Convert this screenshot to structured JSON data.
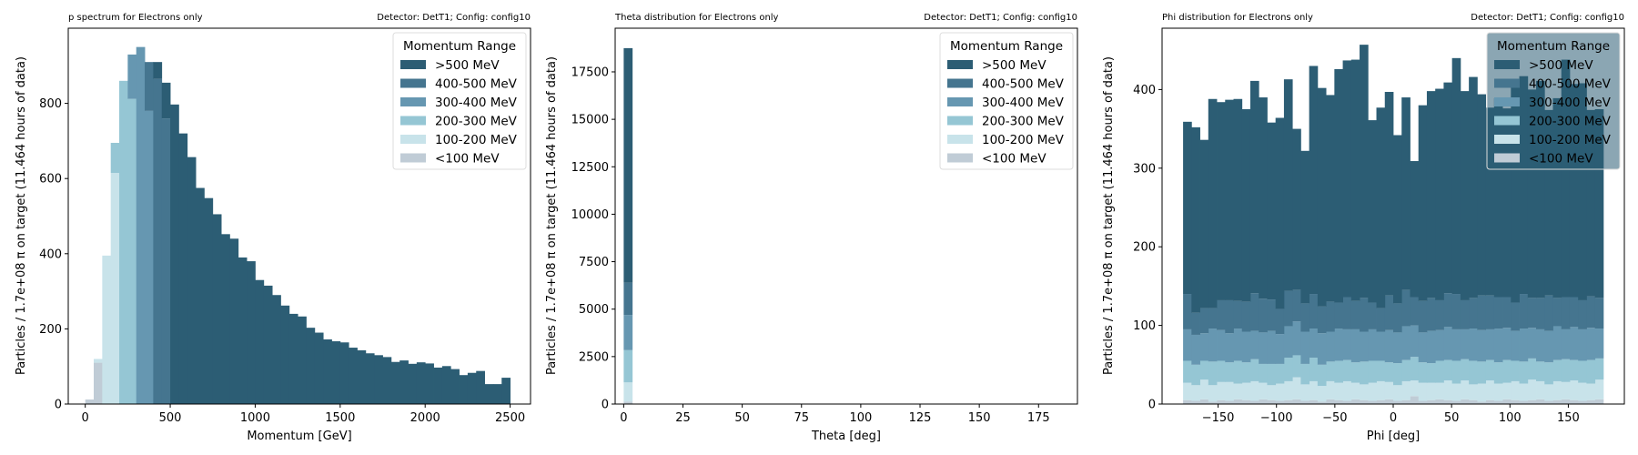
{
  "colors": {
    ">500 MeV": "#2c5d74",
    "400-500 MeV": "#45758f",
    "300-400 MeV": "#6697b1",
    "200-300 MeV": "#95c6d4",
    "100-200 MeV": "#c8e3ea",
    "<100 MeV": "#c0ccd6"
  },
  "chart_data": [
    {
      "type": "bar",
      "title_left": "p spectrum for Electrons only",
      "title_right": "Detector: DetT1; Config: config10",
      "xlabel": "Momentum [GeV]",
      "ylabel": "Particles / 1.7e+08 π on target (11.464 hours of data)",
      "xlim": [
        -100,
        2620
      ],
      "ylim": [
        0,
        1000
      ],
      "xticks": [
        0,
        500,
        1000,
        1500,
        2000,
        2500
      ],
      "yticks": [
        0,
        200,
        400,
        600,
        800
      ],
      "legend_title": "Momentum Range",
      "legend_position": "top-right",
      "bin_edges": [
        0,
        50,
        100,
        150,
        200,
        250,
        300,
        350,
        400,
        450,
        500,
        550,
        600,
        650,
        700,
        750,
        800,
        850,
        900,
        950,
        1000,
        1050,
        1100,
        1150,
        1200,
        1250,
        1300,
        1350,
        1400,
        1450,
        1500,
        1550,
        1600,
        1650,
        1700,
        1750,
        1800,
        1850,
        1900,
        1950,
        2000,
        2050,
        2100,
        2150,
        2200,
        2250,
        2300,
        2350,
        2400,
        2450,
        2500
      ],
      "series": [
        {
          "name": "<100 MeV",
          "values": [
            12,
            110,
            0,
            0,
            0,
            0,
            0,
            0,
            0,
            0,
            0,
            0,
            0,
            0,
            0,
            0,
            0,
            0,
            0,
            0,
            0,
            0,
            0,
            0,
            0,
            0,
            0,
            0,
            0,
            0,
            0,
            0,
            0,
            0,
            0,
            0,
            0,
            0,
            0,
            0,
            0,
            0,
            0,
            0,
            0,
            0,
            0,
            0,
            0,
            0
          ]
        },
        {
          "name": "100-200 MeV",
          "values": [
            0,
            10,
            395,
            615,
            0,
            0,
            0,
            0,
            0,
            0,
            0,
            0,
            0,
            0,
            0,
            0,
            0,
            0,
            0,
            0,
            0,
            0,
            0,
            0,
            0,
            0,
            0,
            0,
            0,
            0,
            0,
            0,
            0,
            0,
            0,
            0,
            0,
            0,
            0,
            0,
            0,
            0,
            0,
            0,
            0,
            0,
            0,
            0,
            0,
            0
          ]
        },
        {
          "name": "200-300 MeV",
          "values": [
            0,
            0,
            0,
            80,
            860,
            812,
            0,
            0,
            0,
            0,
            0,
            0,
            0,
            0,
            0,
            0,
            0,
            0,
            0,
            0,
            0,
            0,
            0,
            0,
            0,
            0,
            0,
            0,
            0,
            0,
            0,
            0,
            0,
            0,
            0,
            0,
            0,
            0,
            0,
            0,
            0,
            0,
            0,
            0,
            0,
            0,
            0,
            0,
            0,
            0
          ]
        },
        {
          "name": "300-400 MeV",
          "values": [
            0,
            0,
            0,
            0,
            0,
            118,
            950,
            780,
            0,
            0,
            0,
            0,
            0,
            0,
            0,
            0,
            0,
            0,
            0,
            0,
            0,
            0,
            0,
            0,
            0,
            0,
            0,
            0,
            0,
            0,
            0,
            0,
            0,
            0,
            0,
            0,
            0,
            0,
            0,
            0,
            0,
            0,
            0,
            0,
            0,
            0,
            0,
            0,
            0,
            0
          ]
        },
        {
          "name": "400-500 MeV",
          "values": [
            0,
            0,
            0,
            0,
            0,
            0,
            0,
            130,
            865,
            760,
            0,
            0,
            0,
            0,
            0,
            0,
            0,
            0,
            0,
            0,
            0,
            0,
            0,
            0,
            0,
            0,
            0,
            0,
            0,
            0,
            0,
            0,
            0,
            0,
            0,
            0,
            0,
            0,
            0,
            0,
            0,
            0,
            0,
            0,
            0,
            0,
            0,
            0,
            0,
            0
          ]
        },
        {
          "name": ">500 MeV",
          "values": [
            0,
            0,
            0,
            0,
            0,
            0,
            0,
            0,
            45,
            95,
            797,
            720,
            657,
            575,
            548,
            505,
            452,
            440,
            390,
            380,
            330,
            315,
            290,
            262,
            240,
            233,
            203,
            190,
            172,
            167,
            164,
            150,
            143,
            135,
            130,
            125,
            112,
            116,
            107,
            111,
            108,
            97,
            101,
            93,
            77,
            83,
            88,
            53,
            53,
            70
          ]
        }
      ]
    },
    {
      "type": "bar",
      "title_left": "Theta distribution for Electrons only",
      "title_right": "Detector: DetT1; Config: config10",
      "xlabel": "Theta [deg]",
      "ylabel": "Particles / 1.7e+08 π on target (11.464 hours of data)",
      "xlim": [
        -3.6,
        191.4
      ],
      "ylim": [
        0,
        19800
      ],
      "xticks": [
        0,
        25,
        50,
        75,
        100,
        125,
        150,
        175
      ],
      "yticks": [
        0,
        2500,
        5000,
        7500,
        10000,
        12500,
        15000,
        17500
      ],
      "legend_title": "Momentum Range",
      "legend_position": "top-right",
      "bin_edges": [
        0,
        3.6
      ],
      "series": [
        {
          "name": "<100 MeV",
          "values": [
            130
          ]
        },
        {
          "name": "100-200 MeV",
          "values": [
            1010
          ]
        },
        {
          "name": "200-300 MeV",
          "values": [
            1700
          ]
        },
        {
          "name": "300-400 MeV",
          "values": [
            1850
          ]
        },
        {
          "name": "400-500 MeV",
          "values": [
            1700
          ]
        },
        {
          "name": ">500 MeV",
          "values": [
            12360
          ]
        }
      ]
    },
    {
      "type": "bar",
      "title_left": "Phi distribution for Electrons only",
      "title_right": "Detector: DetT1; Config: config10",
      "xlabel": "Phi [deg]",
      "ylabel": "Particles / 1.7e+08 π on target (11.464 hours of data)",
      "xlim": [
        -198,
        198
      ],
      "ylim": [
        0,
        478
      ],
      "xticks": [
        -150,
        -100,
        -50,
        0,
        50,
        100,
        150
      ],
      "yticks": [
        0,
        100,
        200,
        300,
        400
      ],
      "legend_title": "Momentum Range",
      "legend_position": "top-right",
      "bin_edges": [
        -180,
        -172.8,
        -165.6,
        -158.4,
        -151.2,
        -144,
        -136.8,
        -129.6,
        -122.4,
        -115.2,
        -108,
        -100.8,
        -93.6,
        -86.4,
        -79.2,
        -72,
        -64.8,
        -57.6,
        -50.4,
        -43.2,
        -36,
        -28.8,
        -21.6,
        -14.4,
        -7.2,
        0,
        7.2,
        14.4,
        21.6,
        28.8,
        36,
        43.2,
        50.4,
        57.6,
        64.8,
        72,
        79.2,
        86.4,
        93.6,
        100.8,
        108,
        115.2,
        122.4,
        129.6,
        136.8,
        144,
        151.2,
        158.4,
        165.6,
        172.8,
        180
      ],
      "series": [
        {
          "name": "<100 MeV",
          "values": [
            5,
            4,
            6,
            3,
            5,
            4,
            6,
            5,
            4,
            6,
            5,
            4,
            5,
            6,
            4,
            5,
            3,
            6,
            5,
            4,
            6,
            5,
            4,
            5,
            6,
            4,
            5,
            10,
            4,
            5,
            6,
            5,
            4,
            6,
            5,
            3,
            5,
            4,
            6,
            5,
            4,
            5,
            6,
            4,
            5,
            6,
            5,
            4,
            5,
            6
          ]
        },
        {
          "name": "100-200 MeV",
          "values": [
            22,
            20,
            25,
            21,
            23,
            24,
            20,
            22,
            25,
            21,
            19,
            22,
            24,
            28,
            21,
            24,
            20,
            23,
            22,
            25,
            21,
            20,
            23,
            24,
            22,
            20,
            24,
            20,
            23,
            22,
            21,
            25,
            22,
            24,
            20,
            23,
            25,
            22,
            21,
            24,
            22,
            26,
            23,
            21,
            24,
            22,
            25,
            23,
            21,
            25
          ]
        },
        {
          "name": "200-300 MeV",
          "values": [
            28,
            26,
            24,
            30,
            27,
            25,
            29,
            26,
            28,
            24,
            27,
            25,
            30,
            28,
            26,
            30,
            27,
            25,
            28,
            27,
            26,
            29,
            28,
            26,
            25,
            28,
            27,
            30,
            26,
            25,
            28,
            26,
            29,
            27,
            30,
            28,
            26,
            27,
            29,
            26,
            28,
            27,
            25,
            28,
            27,
            29,
            26,
            28,
            30,
            27
          ]
        },
        {
          "name": "300-400 MeV",
          "values": [
            40,
            38,
            35,
            42,
            39,
            37,
            41,
            39,
            36,
            40,
            42,
            38,
            40,
            43,
            41,
            37,
            40,
            38,
            41,
            39,
            42,
            38,
            40,
            37,
            41,
            39,
            43,
            40,
            38,
            41,
            39,
            42,
            40,
            38,
            41,
            40,
            39,
            43,
            41,
            38,
            42,
            39,
            41,
            40,
            43,
            38,
            42,
            40,
            41,
            38
          ]
        },
        {
          "name": "400-500 MeV",
          "values": [
            45,
            28,
            32,
            26,
            38,
            42,
            35,
            38,
            48,
            43,
            40,
            32,
            45,
            40,
            36,
            44,
            34,
            38,
            33,
            41,
            36,
            43,
            34,
            30,
            44,
            37,
            46,
            36,
            40,
            42,
            38,
            43,
            45,
            37,
            39,
            44,
            43,
            40,
            39,
            36,
            44,
            38,
            40,
            45,
            36,
            41,
            38,
            37,
            40,
            39
          ]
        },
        {
          "name": ">500 MeV",
          "values": [
            219,
            236,
            214,
            266,
            252,
            255,
            257,
            245,
            270,
            256,
            225,
            243,
            269,
            205,
            194,
            290,
            278,
            263,
            297,
            301,
            307,
            322,
            232,
            255,
            259,
            214,
            245,
            173,
            249,
            263,
            269,
            268,
            300,
            266,
            281,
            256,
            239,
            253,
            240,
            279,
            277,
            265,
            276,
            236,
            254,
            302,
            271,
            276,
            237,
            240
          ]
        }
      ]
    }
  ]
}
